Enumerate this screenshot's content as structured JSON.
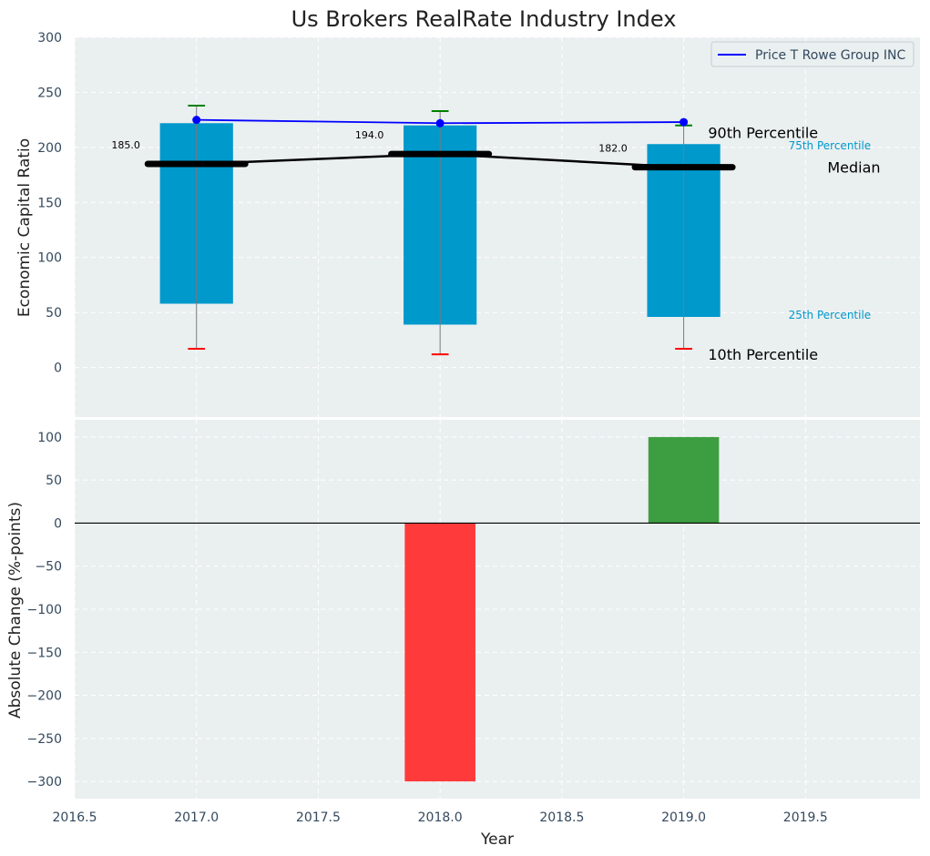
{
  "chart_data": {
    "title": "Us Brokers RealRate Industry Index",
    "xlabel": "Year",
    "x_ticks": [
      "2016.5",
      "2017.0",
      "2017.5",
      "2018.0",
      "2018.5",
      "2019.0",
      "2019.5"
    ],
    "xlim": [
      2016.5,
      2019.97
    ],
    "colors": {
      "background": "#eaeff0",
      "box": "#0099cc",
      "company_line": "#0000ff",
      "median": "#000000",
      "p90_cap": "#008000",
      "p10_cap": "#ff0000",
      "increase": "#2e9632",
      "decrease": "#ff2a2a",
      "band_label": "#0099cc"
    },
    "top": {
      "type": "box",
      "ylabel": "Economic Capital Ratio",
      "ylim": [
        -45,
        300
      ],
      "y_ticks": [
        "0",
        "50",
        "100",
        "150",
        "200",
        "250",
        "300"
      ],
      "years": [
        2017,
        2018,
        2019
      ],
      "p10": [
        17,
        12,
        17
      ],
      "p25": [
        58,
        39,
        46
      ],
      "median": [
        185,
        194,
        182
      ],
      "p75": [
        222,
        220,
        203
      ],
      "p90": [
        238,
        233,
        220
      ],
      "median_labels": [
        "185.0",
        "194.0",
        "182.0"
      ],
      "company": {
        "name": "Price T Rowe Group INC",
        "values": [
          225,
          222,
          223
        ]
      },
      "legend_position": "top-right",
      "annotations": {
        "p90": "90th Percentile",
        "p75": "75th Percentile",
        "median": "Median",
        "p25": "25th Percentile",
        "p10": "10th Percentile"
      }
    },
    "bottom": {
      "type": "bar",
      "ylabel": "Absolute Change (%-points)",
      "ylim": [
        -320,
        120
      ],
      "y_ticks": [
        "100",
        "50",
        "0",
        "−50",
        "−100",
        "−150",
        "−200",
        "−250",
        "−300"
      ],
      "years": [
        2018,
        2019
      ],
      "values": [
        -300,
        100
      ]
    }
  }
}
